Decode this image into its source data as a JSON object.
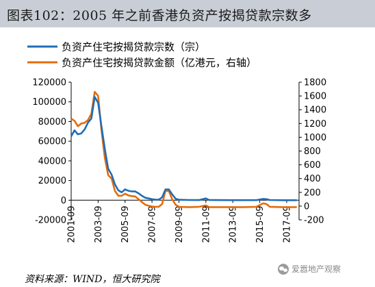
{
  "header": {
    "title": "图表102：2005 年之前香港负资产按揭贷款宗数多"
  },
  "footer": {
    "source": "资料来源：WIND，恒大研究院",
    "watermark": "爱嚣地产观察"
  },
  "colors": {
    "series1": "#1f6db5",
    "series2": "#e46c0a",
    "title_bg": "#c9ced6"
  },
  "chart_data": {
    "type": "line",
    "legend_position": "top-left",
    "grid": false,
    "left_axis": {
      "ylim": [
        -20000,
        120000
      ],
      "ticks": [
        -20000,
        0,
        20000,
        40000,
        60000,
        80000,
        100000,
        120000
      ]
    },
    "right_axis": {
      "ylim": [
        -200,
        1800
      ],
      "ticks": [
        -200,
        0,
        200,
        400,
        600,
        800,
        1000,
        1200,
        1400,
        1600,
        1800
      ]
    },
    "x_ticks": [
      "2001-09",
      "2003-09",
      "2005-09",
      "2007-09",
      "2009-09",
      "2011-09",
      "2013-09",
      "2015-09",
      "2017-09"
    ],
    "series": [
      {
        "name": "负资产住宅按揭贷款宗数（宗）",
        "axis": "left",
        "points": [
          [
            "2001-09",
            65000
          ],
          [
            "2001-12",
            71000
          ],
          [
            "2002-03",
            67000
          ],
          [
            "2002-06",
            68000
          ],
          [
            "2002-09",
            72000
          ],
          [
            "2002-12",
            79000
          ],
          [
            "2003-03",
            83000
          ],
          [
            "2003-06",
            105000
          ],
          [
            "2003-09",
            99000
          ],
          [
            "2003-12",
            75000
          ],
          [
            "2004-03",
            52000
          ],
          [
            "2004-06",
            32000
          ],
          [
            "2004-09",
            26000
          ],
          [
            "2004-12",
            16000
          ],
          [
            "2005-03",
            10000
          ],
          [
            "2005-06",
            8000
          ],
          [
            "2005-09",
            11000
          ],
          [
            "2005-12",
            9500
          ],
          [
            "2006-03",
            9000
          ],
          [
            "2006-06",
            9000
          ],
          [
            "2006-09",
            7000
          ],
          [
            "2006-12",
            4500
          ],
          [
            "2007-03",
            2500
          ],
          [
            "2007-06",
            1800
          ],
          [
            "2007-09",
            1000
          ],
          [
            "2007-12",
            600
          ],
          [
            "2008-03",
            500
          ],
          [
            "2008-06",
            3000
          ],
          [
            "2008-09",
            11000
          ],
          [
            "2008-12",
            11000
          ],
          [
            "2009-03",
            6000
          ],
          [
            "2009-06",
            1500
          ],
          [
            "2009-09",
            500
          ],
          [
            "2010-06",
            200
          ],
          [
            "2011-03",
            100
          ],
          [
            "2011-09",
            1800
          ],
          [
            "2011-12",
            200
          ],
          [
            "2012-06",
            100
          ],
          [
            "2013-06",
            50
          ],
          [
            "2014-06",
            30
          ],
          [
            "2015-06",
            50
          ],
          [
            "2015-12",
            1300
          ],
          [
            "2016-03",
            1000
          ],
          [
            "2016-06",
            200
          ],
          [
            "2017-06",
            10
          ],
          [
            "2018-06",
            0
          ]
        ]
      },
      {
        "name": "负资产住宅按揭贷款金额（亿港元，右轴）",
        "axis": "right",
        "points": [
          [
            "2001-09",
            1270
          ],
          [
            "2001-12",
            1240
          ],
          [
            "2002-03",
            1160
          ],
          [
            "2002-06",
            1200
          ],
          [
            "2002-09",
            1210
          ],
          [
            "2002-12",
            1250
          ],
          [
            "2003-03",
            1340
          ],
          [
            "2003-06",
            1660
          ],
          [
            "2003-09",
            1600
          ],
          [
            "2003-12",
            1100
          ],
          [
            "2004-03",
            700
          ],
          [
            "2004-06",
            450
          ],
          [
            "2004-09",
            400
          ],
          [
            "2004-12",
            220
          ],
          [
            "2005-03",
            150
          ],
          [
            "2005-06",
            150
          ],
          [
            "2005-09",
            180
          ],
          [
            "2005-12",
            155
          ],
          [
            "2006-03",
            145
          ],
          [
            "2006-06",
            140
          ],
          [
            "2006-09",
            100
          ],
          [
            "2006-12",
            60
          ],
          [
            "2007-03",
            20
          ],
          [
            "2007-06",
            5
          ],
          [
            "2007-09",
            -5
          ],
          [
            "2007-12",
            -10
          ],
          [
            "2008-03",
            -10
          ],
          [
            "2008-06",
            30
          ],
          [
            "2008-09",
            220
          ],
          [
            "2008-12",
            220
          ],
          [
            "2009-03",
            100
          ],
          [
            "2009-06",
            20
          ],
          [
            "2009-09",
            -10
          ],
          [
            "2010-06",
            -15
          ],
          [
            "2011-03",
            -10
          ],
          [
            "2011-09",
            10
          ],
          [
            "2011-12",
            -15
          ],
          [
            "2012-06",
            -15
          ],
          [
            "2013-06",
            -15
          ],
          [
            "2014-06",
            -15
          ],
          [
            "2015-06",
            -10
          ],
          [
            "2015-12",
            40
          ],
          [
            "2016-03",
            30
          ],
          [
            "2016-06",
            -10
          ],
          [
            "2017-06",
            -15
          ],
          [
            "2018-06",
            -15
          ]
        ]
      }
    ]
  }
}
